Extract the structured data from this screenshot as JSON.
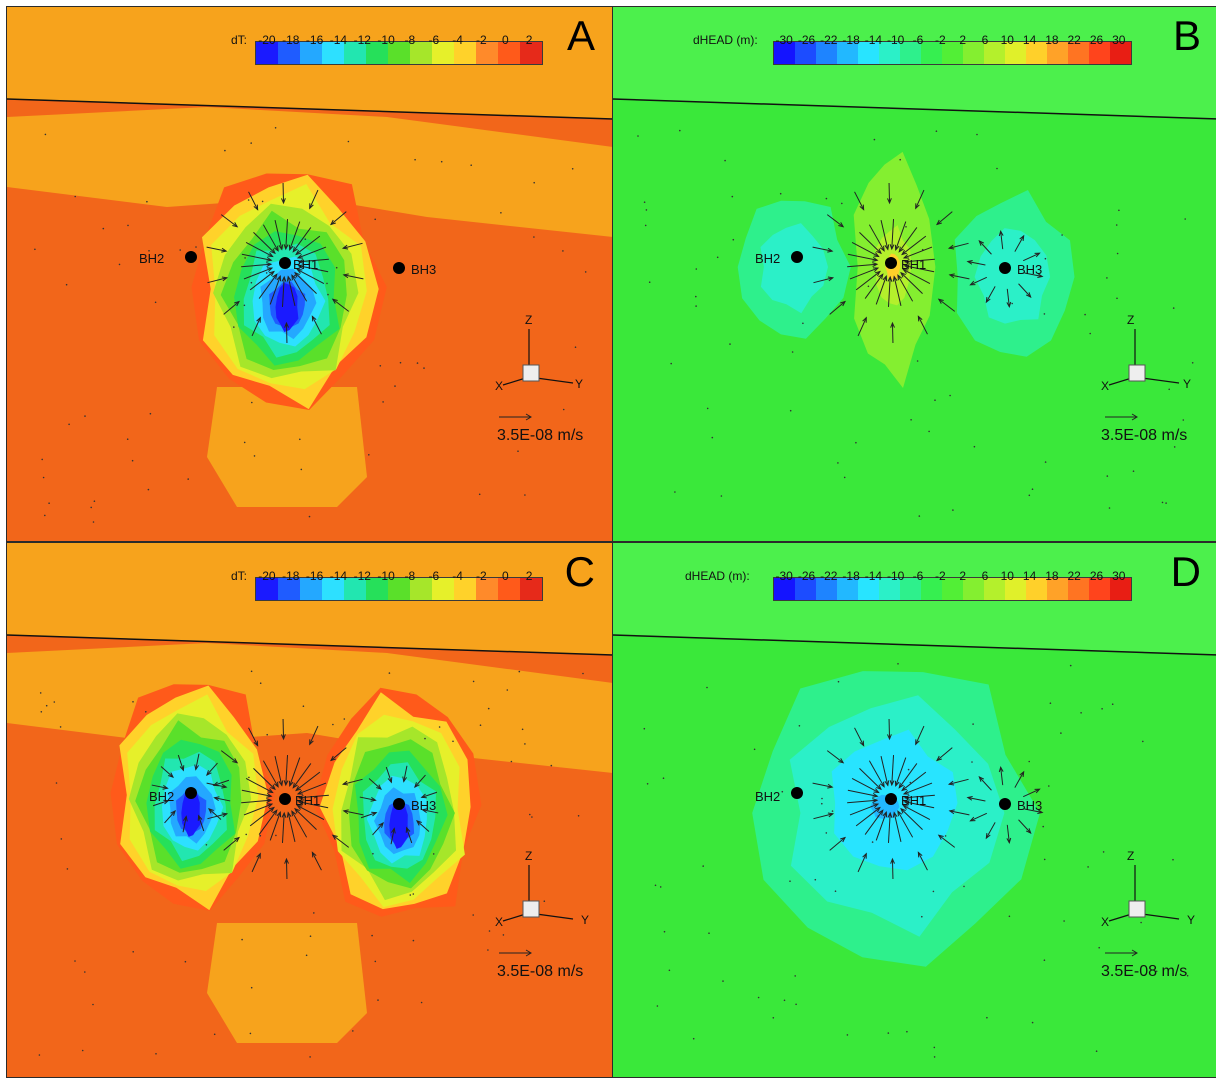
{
  "panels": [
    {
      "letter": "A",
      "field": "dT",
      "colorbar": {
        "title": "dT:",
        "ticks": [
          "-20",
          "-18",
          "-16",
          "-14",
          "-12",
          "-10",
          "-8",
          "-6",
          "-4",
          "-2",
          "0",
          "2"
        ]
      },
      "wells": {
        "bh1": "BH1",
        "bh2": "BH2",
        "bh3": "BH3"
      },
      "axes": {
        "z": "Z",
        "x": "X",
        "y": "Y"
      },
      "reference_vector": "3.5E-08 m/s"
    },
    {
      "letter": "B",
      "field": "dHEAD",
      "colorbar": {
        "title": "dHEAD (m):",
        "ticks": [
          "-30",
          "-26",
          "-22",
          "-18",
          "-14",
          "-10",
          "-6",
          "-2",
          "2",
          "6",
          "10",
          "14",
          "18",
          "22",
          "26",
          "30"
        ]
      },
      "wells": {
        "bh1": "BH1",
        "bh2": "BH2",
        "bh3": "BH3"
      },
      "axes": {
        "z": "Z",
        "x": "X",
        "y": "Y"
      },
      "reference_vector": "3.5E-08 m/s"
    },
    {
      "letter": "C",
      "field": "dT",
      "colorbar": {
        "title": "dT:",
        "ticks": [
          "-20",
          "-18",
          "-16",
          "-14",
          "-12",
          "-10",
          "-8",
          "-6",
          "-4",
          "-2",
          "0",
          "2"
        ]
      },
      "wells": {
        "bh1": "BH1",
        "bh2": "BH2",
        "bh3": "BH3"
      },
      "axes": {
        "z": "Z",
        "x": "X",
        "y": "Y"
      },
      "reference_vector": "3.5E-08 m/s"
    },
    {
      "letter": "D",
      "field": "dHEAD",
      "colorbar": {
        "title": "dHEAD (m):",
        "ticks": [
          "-30",
          "-26",
          "-22",
          "-18",
          "-14",
          "-10",
          "-6",
          "-2",
          "2",
          "6",
          "10",
          "14",
          "18",
          "22",
          "26",
          "30"
        ]
      },
      "wells": {
        "bh1": "BH1",
        "bh2": "BH2",
        "bh3": "BH3"
      },
      "axes": {
        "z": "Z",
        "x": "X",
        "y": "Y"
      },
      "reference_vector": "3.5E-08 m/s"
    }
  ],
  "colors": {
    "dt_scale": [
      "#1a1aff",
      "#1f5cff",
      "#24a8ff",
      "#2de0ff",
      "#22e6b0",
      "#26e05a",
      "#5ae02a",
      "#a6e62a",
      "#e6f02a",
      "#ffd22a",
      "#ff8a2a",
      "#ff5a1a",
      "#e62a1a"
    ],
    "dhead_scale": [
      "#1414ff",
      "#1c4cff",
      "#1e84ff",
      "#22b8ff",
      "#28e4ff",
      "#2bf0c8",
      "#2ef08c",
      "#36ef50",
      "#52ef36",
      "#84ef30",
      "#b4f02c",
      "#e0f02a",
      "#ffd02a",
      "#ffa228",
      "#ff7422",
      "#ff441c",
      "#e81e14"
    ],
    "background_dt": "#f2661a",
    "background_dhead": "#3ae83a"
  }
}
